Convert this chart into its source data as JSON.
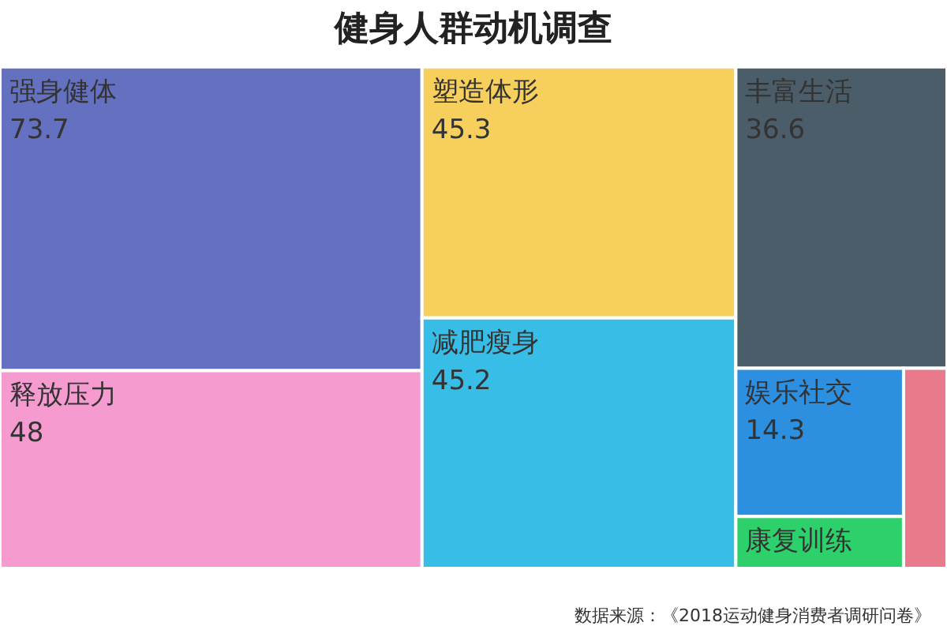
{
  "chart_data": {
    "type": "other",
    "title": "健身人群动机调查",
    "categories": [
      "强身健体",
      "释放压力",
      "塑造体形",
      "减肥瘦身",
      "丰富生活",
      "娱乐社交",
      "康复训练",
      null
    ],
    "values": [
      73.7,
      48,
      45.3,
      45.2,
      36.6,
      14.3,
      null,
      null
    ],
    "value_labels": [
      "73.7",
      "48",
      "45.3",
      "45.2",
      "36.6",
      "14.3",
      null,
      null
    ],
    "colors": [
      "#6470c0",
      "#f59bd0",
      "#f7cf5c",
      "#38bde6",
      "#4a5d68",
      "#2d8fe0",
      "#2ed06c",
      "#e87a8c"
    ],
    "annotations": [
      "数据来源：《2018运动健身消费者调研问卷》"
    ]
  }
}
